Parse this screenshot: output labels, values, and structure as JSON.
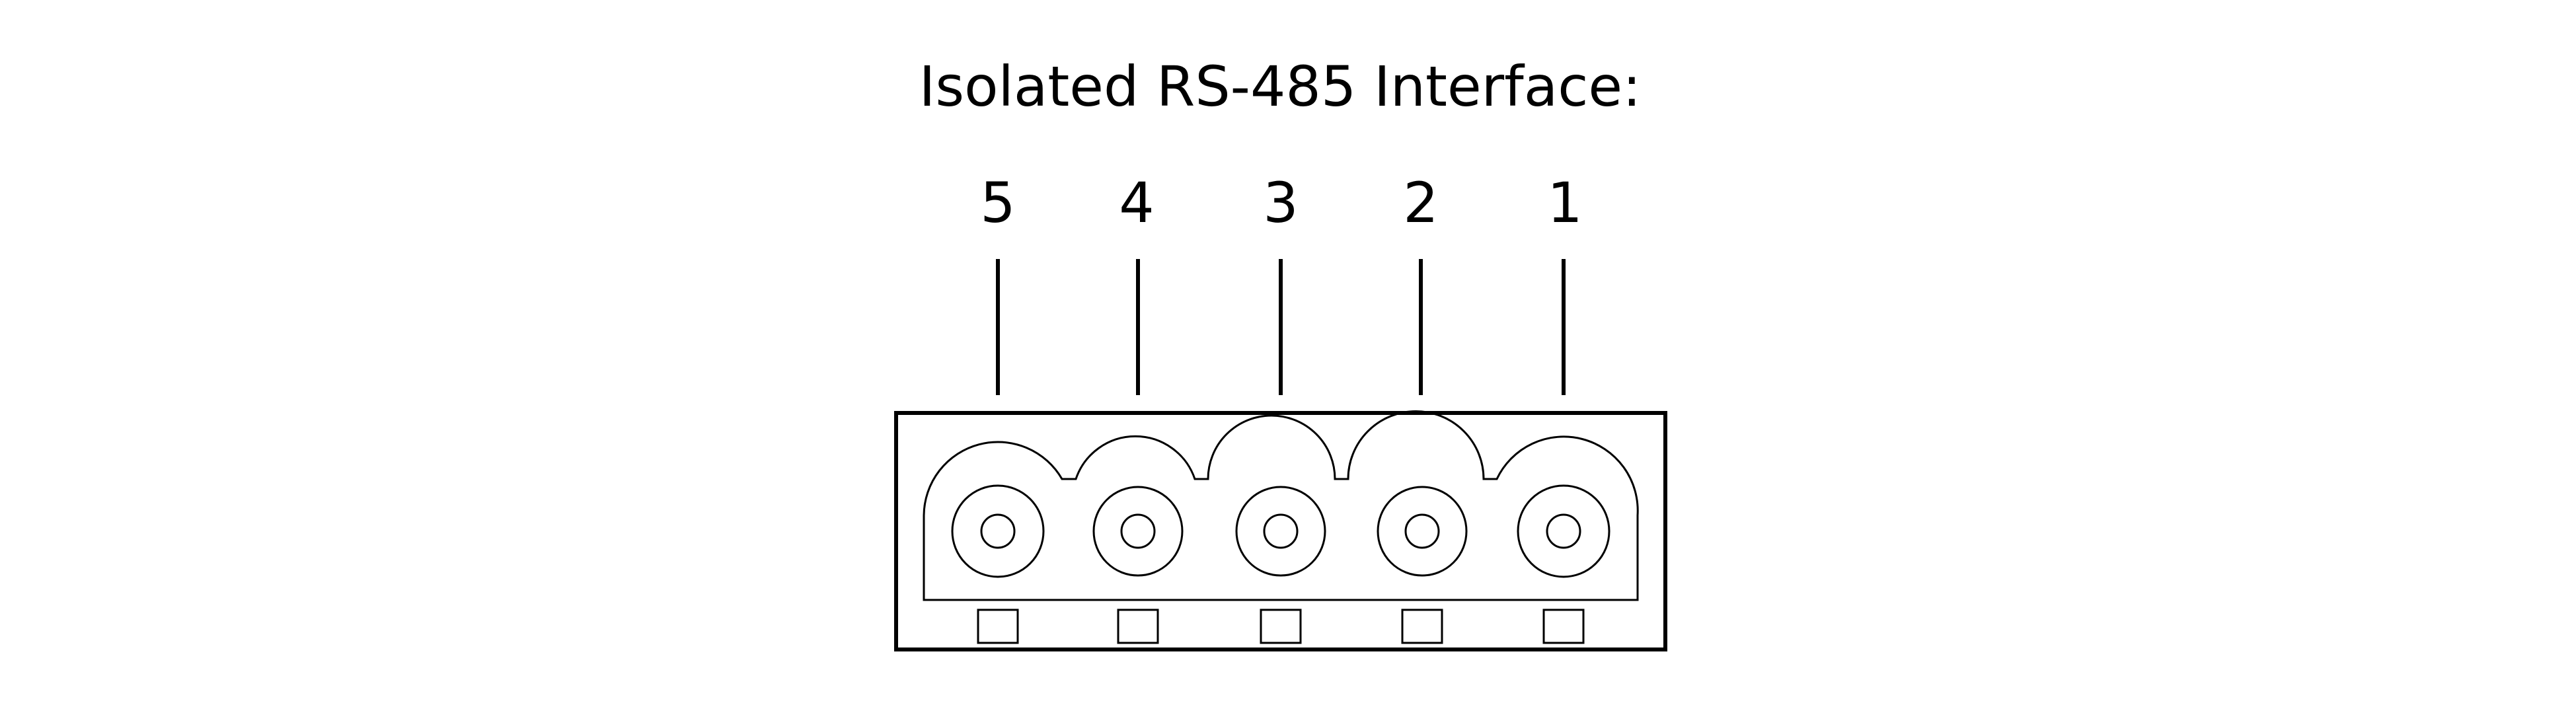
{
  "title": "Isolated RS-485 Interface:",
  "pins": [
    "5",
    "4",
    "3",
    "2",
    "1"
  ],
  "colors": {
    "background": "#ffffff",
    "line": "#000000"
  }
}
